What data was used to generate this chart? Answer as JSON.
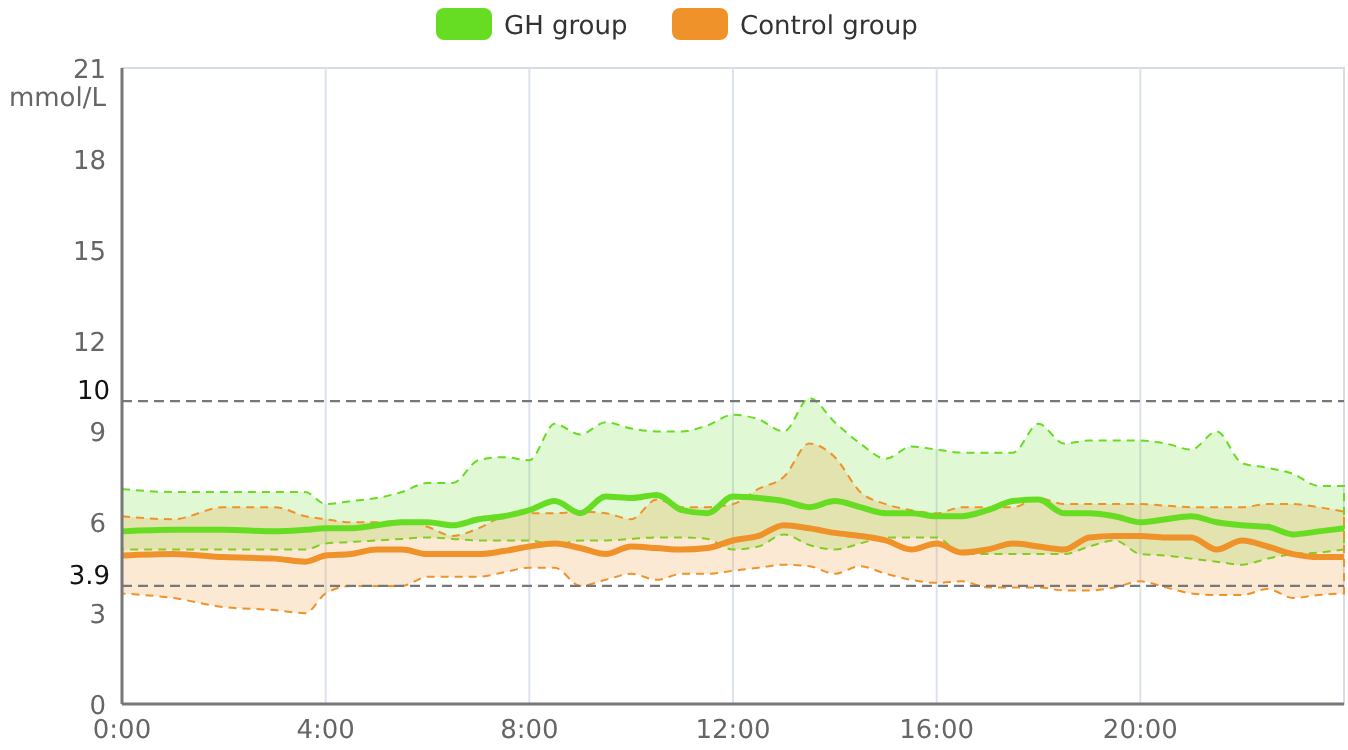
{
  "chart_data": {
    "type": "line",
    "ylabel": "mmol/L",
    "xlim": [
      0,
      24
    ],
    "ylim": [
      0,
      21
    ],
    "xticks": [
      {
        "value": 0,
        "label": "0:00"
      },
      {
        "value": 4,
        "label": "4:00"
      },
      {
        "value": 8,
        "label": "8:00"
      },
      {
        "value": 12,
        "label": "12:00"
      },
      {
        "value": 16,
        "label": "16:00"
      },
      {
        "value": 20,
        "label": "20:00"
      }
    ],
    "yticks": [
      0,
      3,
      6,
      9,
      12,
      15,
      18,
      21
    ],
    "grid": "x",
    "legend": "top",
    "line_style": "solid",
    "marker": "none",
    "ref_lines": [
      {
        "axis": "y",
        "value": 10,
        "label": "10",
        "color": "#777777",
        "line_style": "dashed"
      },
      {
        "axis": "y",
        "value": 3.9,
        "label": "3.9",
        "color": "#777777",
        "line_style": "dashed"
      }
    ],
    "x": [
      0,
      1,
      2,
      3,
      3.6,
      4,
      4.5,
      5,
      5.5,
      6,
      6.5,
      7,
      7.5,
      8,
      8.5,
      9,
      9.5,
      10,
      10.5,
      11,
      11.5,
      12,
      12.5,
      13,
      13.5,
      14,
      14.5,
      15,
      15.5,
      16,
      16.5,
      17,
      17.5,
      18,
      18.5,
      19,
      19.5,
      20,
      20.5,
      21,
      21.5,
      22,
      22.5,
      23,
      23.5,
      24
    ],
    "series": [
      {
        "name": "GH group",
        "color": "#66dd22",
        "values": [
          5.7,
          5.75,
          5.75,
          5.7,
          5.75,
          5.8,
          5.8,
          5.9,
          6.0,
          6.0,
          5.9,
          6.1,
          6.2,
          6.4,
          6.7,
          6.3,
          6.85,
          6.8,
          6.9,
          6.4,
          6.3,
          6.85,
          6.8,
          6.7,
          6.5,
          6.7,
          6.5,
          6.3,
          6.3,
          6.2,
          6.2,
          6.4,
          6.7,
          6.75,
          6.3,
          6.3,
          6.2,
          6.0,
          6.1,
          6.2,
          6.0,
          5.9,
          5.85,
          5.6,
          5.7,
          5.8
        ],
        "upper": [
          7.1,
          7.0,
          7.0,
          7.0,
          7.0,
          6.6,
          6.7,
          6.8,
          7.0,
          7.3,
          7.3,
          8.05,
          8.15,
          8.05,
          9.25,
          8.9,
          9.3,
          9.1,
          9.0,
          9.0,
          9.2,
          9.55,
          9.4,
          9.0,
          10.1,
          9.3,
          8.6,
          8.1,
          8.5,
          8.4,
          8.3,
          8.3,
          8.3,
          9.25,
          8.6,
          8.7,
          8.7,
          8.7,
          8.6,
          8.4,
          9.0,
          7.95,
          7.8,
          7.6,
          7.2,
          7.2
        ],
        "lower": [
          5.1,
          5.1,
          5.1,
          5.1,
          5.1,
          5.3,
          5.35,
          5.4,
          5.45,
          5.5,
          5.45,
          5.4,
          5.4,
          5.4,
          5.25,
          5.4,
          5.4,
          5.45,
          5.5,
          5.5,
          5.45,
          5.1,
          5.2,
          5.6,
          5.25,
          5.1,
          5.3,
          5.5,
          5.5,
          5.5,
          4.95,
          4.95,
          4.95,
          4.95,
          4.95,
          5.2,
          5.4,
          4.95,
          4.9,
          4.8,
          4.7,
          4.6,
          4.8,
          4.95,
          5.0,
          5.1
        ]
      },
      {
        "name": "Control group",
        "color": "#f0922a",
        "values": [
          4.9,
          4.95,
          4.85,
          4.8,
          4.7,
          4.9,
          4.95,
          5.1,
          5.1,
          4.95,
          4.95,
          4.95,
          5.05,
          5.2,
          5.3,
          5.15,
          4.95,
          5.2,
          5.15,
          5.1,
          5.15,
          5.4,
          5.55,
          5.9,
          5.8,
          5.65,
          5.55,
          5.4,
          5.1,
          5.3,
          5.0,
          5.1,
          5.3,
          5.2,
          5.1,
          5.5,
          5.55,
          5.55,
          5.5,
          5.5,
          5.1,
          5.4,
          5.2,
          4.95,
          4.85,
          4.85
        ],
        "upper": [
          6.2,
          6.1,
          6.5,
          6.5,
          6.2,
          6.1,
          6.0,
          6.0,
          6.05,
          5.85,
          5.55,
          5.8,
          6.2,
          6.3,
          6.3,
          6.35,
          6.3,
          6.1,
          6.75,
          6.5,
          6.5,
          6.6,
          7.1,
          7.5,
          8.6,
          8.15,
          7.0,
          6.6,
          6.4,
          6.3,
          6.5,
          6.5,
          6.5,
          6.8,
          6.6,
          6.6,
          6.6,
          6.6,
          6.55,
          6.5,
          6.5,
          6.5,
          6.6,
          6.6,
          6.5,
          6.35
        ],
        "lower": [
          3.65,
          3.5,
          3.2,
          3.1,
          3.0,
          3.65,
          3.9,
          3.9,
          3.9,
          4.2,
          4.2,
          4.2,
          4.35,
          4.5,
          4.5,
          3.9,
          4.1,
          4.3,
          4.1,
          4.3,
          4.3,
          4.4,
          4.5,
          4.6,
          4.55,
          4.3,
          4.55,
          4.3,
          4.1,
          4.0,
          4.05,
          3.85,
          3.85,
          3.85,
          3.75,
          3.75,
          3.85,
          4.05,
          3.85,
          3.65,
          3.6,
          3.6,
          3.8,
          3.5,
          3.6,
          3.65
        ]
      }
    ]
  }
}
